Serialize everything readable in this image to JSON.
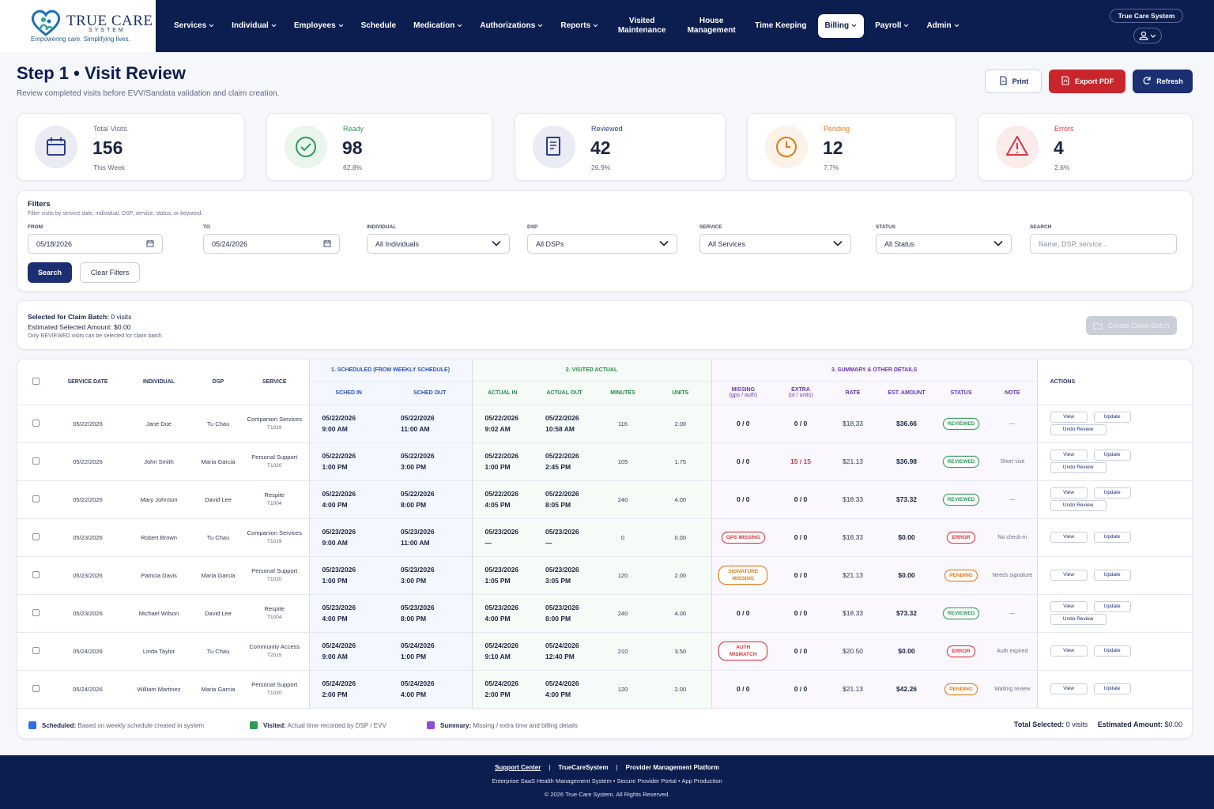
{
  "header": {
    "logo_title": "TRUE CARE",
    "logo_sub": "SYSTEM",
    "tagline": "Empowering care. Simplifying lives.",
    "nav": [
      {
        "label": "Services",
        "has_menu": true
      },
      {
        "label": "Individual",
        "has_menu": true
      },
      {
        "label": "Employees",
        "has_menu": true
      },
      {
        "label": "Schedule",
        "has_menu": false
      },
      {
        "label": "Medication",
        "has_menu": true
      },
      {
        "label": "Authorizations",
        "has_menu": true
      },
      {
        "label": "Reports",
        "has_menu": true
      },
      {
        "label": "Visited Maintenance",
        "has_menu": false
      },
      {
        "label": "House Management",
        "has_menu": false
      },
      {
        "label": "Time Keeping",
        "has_menu": false
      },
      {
        "label": "Billing",
        "has_menu": true,
        "active": true
      },
      {
        "label": "Payroll",
        "has_menu": true
      },
      {
        "label": "Admin",
        "has_menu": true
      }
    ],
    "account": "True Care System"
  },
  "page": {
    "title": "Step 1 • Visit Review",
    "subtitle": "Review completed visits before EVV/Sandata validation and claim creation.",
    "buttons": [
      {
        "label": "Print",
        "color": "#ffffff",
        "text_color": "#1b2a5c"
      },
      {
        "label": "Export PDF",
        "color": "#c8262c",
        "text_color": "#ffffff"
      },
      {
        "label": "Refresh",
        "color": "#1c2f73",
        "text_color": "#ffffff"
      }
    ]
  },
  "stats": [
    {
      "label": "Total Visits",
      "value": 156,
      "sub": "This Week",
      "color": "#2d3f86"
    },
    {
      "label": "Ready",
      "value": 98,
      "sub": "62.8%",
      "color": "#2f9a57"
    },
    {
      "label": "Reviewed",
      "value": 42,
      "sub": "26.9%",
      "color": "#2d3f86"
    },
    {
      "label": "Pending",
      "value": 12,
      "sub": "7.7%",
      "color": "#e07b16"
    },
    {
      "label": "Errors",
      "value": 4,
      "sub": "2.6%",
      "color": "#d9363e"
    }
  ],
  "filters": {
    "title": "Filters",
    "hint": "Filter visits by service date, individual, DSP, service, status, or keyword.",
    "fields": [
      {
        "label": "FROM",
        "value": "05/18/2026",
        "kind": "date"
      },
      {
        "label": "TO",
        "value": "05/24/2026",
        "kind": "date"
      },
      {
        "label": "INDIVIDUAL",
        "value": "All Individuals",
        "kind": "select"
      },
      {
        "label": "DSP",
        "value": "All DSPs",
        "kind": "select"
      },
      {
        "label": "SERVICE",
        "value": "All Services",
        "kind": "select"
      },
      {
        "label": "STATUS",
        "value": "All Status",
        "kind": "select"
      },
      {
        "label": "SEARCH",
        "placeholder": "Name, DSP, service...",
        "kind": "text"
      }
    ],
    "search": "Search",
    "clear": "Clear Filters"
  },
  "selection": {
    "selected_label": "Selected for Claim Batch:",
    "selected_value": "0 visits",
    "amount_label": "Estimated Selected Amount:",
    "amount_value": "$0.00",
    "note": "Only REVIEWED visits can be selected for claim batch.",
    "button": "Create Claim Batch"
  },
  "table": {
    "lead_columns": [
      "SERVICE DATE",
      "INDIVIDUAL",
      "DSP",
      "SERVICE"
    ],
    "groups": [
      {
        "label": "1. SCHEDULED (FROM WEEKLY SCHEDULE)",
        "color": "#2a52be",
        "background": "#f4f7ff",
        "columns": [
          {
            "label": "SCHED IN"
          },
          {
            "label": "SCHED OUT"
          }
        ]
      },
      {
        "label": "2. VISITED ACTUAL",
        "color": "#2a8a4b",
        "background": "#f5fbf6",
        "columns": [
          {
            "label": "ACTUAL IN"
          },
          {
            "label": "ACTUAL OUT"
          },
          {
            "label": "MINUTES"
          },
          {
            "label": "UNITS"
          }
        ]
      },
      {
        "label": "3. SUMMARY & OTHER DETAILS",
        "color": "#6a35b8",
        "background": "#faf7ff",
        "columns": [
          {
            "label": "MISSING",
            "sub": "(gps / auth)"
          },
          {
            "label": "EXTRA",
            "sub": "(ot / units)"
          },
          {
            "label": "RATE"
          },
          {
            "label": "EST. AMOUNT"
          },
          {
            "label": "STATUS"
          },
          {
            "label": "NOTE"
          }
        ]
      }
    ],
    "actions_column": "ACTIONS",
    "rows": [
      {
        "date": "05/22/2026",
        "individual": "Jane Doe",
        "dsp": "Tu Chau",
        "service": "Companion Services",
        "code": "T1019",
        "sched_in": [
          "05/22/2026",
          "9:00 AM"
        ],
        "sched_out": [
          "05/22/2026",
          "11:00 AM"
        ],
        "actual_in": [
          "05/22/2026",
          "9:02 AM"
        ],
        "actual_out": [
          "05/22/2026",
          "10:58 AM"
        ],
        "minutes": 116,
        "units": "2.00",
        "missing": "0 / 0",
        "extra": "0 / 0",
        "rate": "$18.33",
        "amount": "$36.66",
        "status": {
          "label": "REVIEWED",
          "color": "#2f9a57"
        },
        "note": "—",
        "actions": [
          "View",
          "Update",
          "Undo Review"
        ]
      },
      {
        "date": "05/22/2026",
        "individual": "John Smith",
        "dsp": "Maria Garcia",
        "service": "Personal Support",
        "code": "T1020",
        "sched_in": [
          "05/22/2026",
          "1:00 PM"
        ],
        "sched_out": [
          "05/22/2026",
          "3:00 PM"
        ],
        "actual_in": [
          "05/22/2026",
          "1:00 PM"
        ],
        "actual_out": [
          "05/22/2026",
          "2:45 PM"
        ],
        "minutes": 105,
        "units": "1.75",
        "missing": "0 / 0",
        "extra": {
          "label": "15 / 15",
          "color": "#d9363e"
        },
        "rate": "$21.13",
        "amount": "$36.98",
        "status": {
          "label": "REVIEWED",
          "color": "#2f9a57"
        },
        "note": "Short visit",
        "actions": [
          "View",
          "Update",
          "Undo Review"
        ]
      },
      {
        "date": "05/22/2026",
        "individual": "Mary Johnson",
        "dsp": "David Lee",
        "service": "Respite",
        "code": "T1004",
        "sched_in": [
          "05/22/2026",
          "4:00 PM"
        ],
        "sched_out": [
          "05/22/2026",
          "8:00 PM"
        ],
        "actual_in": [
          "05/22/2026",
          "4:05 PM"
        ],
        "actual_out": [
          "05/22/2026",
          "8:05 PM"
        ],
        "minutes": 240,
        "units": "4.00",
        "missing": "0 / 0",
        "extra": "0 / 0",
        "rate": "$18.33",
        "amount": "$73.32",
        "status": {
          "label": "REVIEWED",
          "color": "#2f9a57"
        },
        "note": "—",
        "actions": [
          "View",
          "Update",
          "Undo Review"
        ]
      },
      {
        "date": "05/23/2026",
        "individual": "Robert Brown",
        "dsp": "Tu Chau",
        "service": "Companion Services",
        "code": "T1019",
        "sched_in": [
          "05/23/2026",
          "9:00 AM"
        ],
        "sched_out": [
          "05/23/2026",
          "11:00 AM"
        ],
        "actual_in": [
          "05/23/2026",
          "—"
        ],
        "actual_out": [
          "05/23/2026",
          "—"
        ],
        "minutes": 0,
        "units": "0.00",
        "missing": {
          "label": "GPS MISSING",
          "color": "#d9363e"
        },
        "extra": "0 / 0",
        "rate": "$18.33",
        "amount": "$0.00",
        "status": {
          "label": "ERROR",
          "color": "#d9363e"
        },
        "note": "No check-in",
        "actions": [
          "View",
          "Update"
        ]
      },
      {
        "date": "05/23/2026",
        "individual": "Patricia Davis",
        "dsp": "Maria Garcia",
        "service": "Personal Support",
        "code": "T1020",
        "sched_in": [
          "05/23/2026",
          "1:00 PM"
        ],
        "sched_out": [
          "05/23/2026",
          "3:00 PM"
        ],
        "actual_in": [
          "05/23/2026",
          "1:05 PM"
        ],
        "actual_out": [
          "05/23/2026",
          "3:05 PM"
        ],
        "minutes": 120,
        "units": "2.00",
        "missing": {
          "label": "SIGNATURE MISSING",
          "color": "#e07b16"
        },
        "extra": "0 / 0",
        "rate": "$21.13",
        "amount": "$0.00",
        "status": {
          "label": "PENDING",
          "color": "#e07b16"
        },
        "note": "Needs signature",
        "actions": [
          "View",
          "Update"
        ]
      },
      {
        "date": "05/23/2026",
        "individual": "Michael Wilson",
        "dsp": "David Lee",
        "service": "Respite",
        "code": "T1004",
        "sched_in": [
          "05/23/2026",
          "4:00 PM"
        ],
        "sched_out": [
          "05/23/2026",
          "8:00 PM"
        ],
        "actual_in": [
          "05/23/2026",
          "4:00 PM"
        ],
        "actual_out": [
          "05/23/2026",
          "8:00 PM"
        ],
        "minutes": 240,
        "units": "4.00",
        "missing": "0 / 0",
        "extra": "0 / 0",
        "rate": "$18.33",
        "amount": "$73.32",
        "status": {
          "label": "REVIEWED",
          "color": "#2f9a57"
        },
        "note": "—",
        "actions": [
          "View",
          "Update",
          "Undo Review"
        ]
      },
      {
        "date": "05/24/2026",
        "individual": "Linda Taylor",
        "dsp": "Tu Chau",
        "service": "Community Access",
        "code": "T2015",
        "sched_in": [
          "05/24/2026",
          "9:00 AM"
        ],
        "sched_out": [
          "05/24/2026",
          "1:00 PM"
        ],
        "actual_in": [
          "05/24/2026",
          "9:10 AM"
        ],
        "actual_out": [
          "05/24/2026",
          "12:40 PM"
        ],
        "minutes": 210,
        "units": "3.50",
        "missing": {
          "label": "AUTH MISMATCH",
          "color": "#d9363e"
        },
        "extra": "0 / 0",
        "rate": "$20.50",
        "amount": "$0.00",
        "status": {
          "label": "ERROR",
          "color": "#d9363e"
        },
        "note": "Auth expired",
        "actions": [
          "View",
          "Update"
        ]
      },
      {
        "date": "05/24/2026",
        "individual": "William Martinez",
        "dsp": "Maria Garcia",
        "service": "Personal Support",
        "code": "T1020",
        "sched_in": [
          "05/24/2026",
          "2:00 PM"
        ],
        "sched_out": [
          "05/24/2026",
          "4:00 PM"
        ],
        "actual_in": [
          "05/24/2026",
          "2:00 PM"
        ],
        "actual_out": [
          "05/24/2026",
          "4:00 PM"
        ],
        "minutes": 120,
        "units": "2.00",
        "missing": "0 / 0",
        "extra": "0 / 0",
        "rate": "$21.13",
        "amount": "$42.26",
        "status": {
          "label": "PENDING",
          "color": "#e07b16"
        },
        "note": "Waiting review",
        "actions": [
          "View",
          "Update"
        ]
      }
    ]
  },
  "legend": [
    {
      "label": "Scheduled:",
      "text": "Based on weekly schedule created in system",
      "color": "#2f6fe0"
    },
    {
      "label": "Visited:",
      "text": "Actual time recorded by DSP / EVV",
      "color": "#2f9a57"
    },
    {
      "label": "Summary:",
      "text": "Missing / extra time and billing details",
      "color": "#8a4fd6"
    }
  ],
  "totals": {
    "selected_label": "Total Selected:",
    "selected_value": "0 visits",
    "amount_label": "Estimated Amount:",
    "amount_value": "$0.00"
  },
  "footer": {
    "links": [
      "Support Center",
      "TrueCareSystem",
      "Provider Management Platform"
    ],
    "tagline": "Enterprise SaaS Health Management System • Secure Provider Portal • App Production",
    "copyright": "© 2026 True Care System. All Rights Reserved."
  }
}
